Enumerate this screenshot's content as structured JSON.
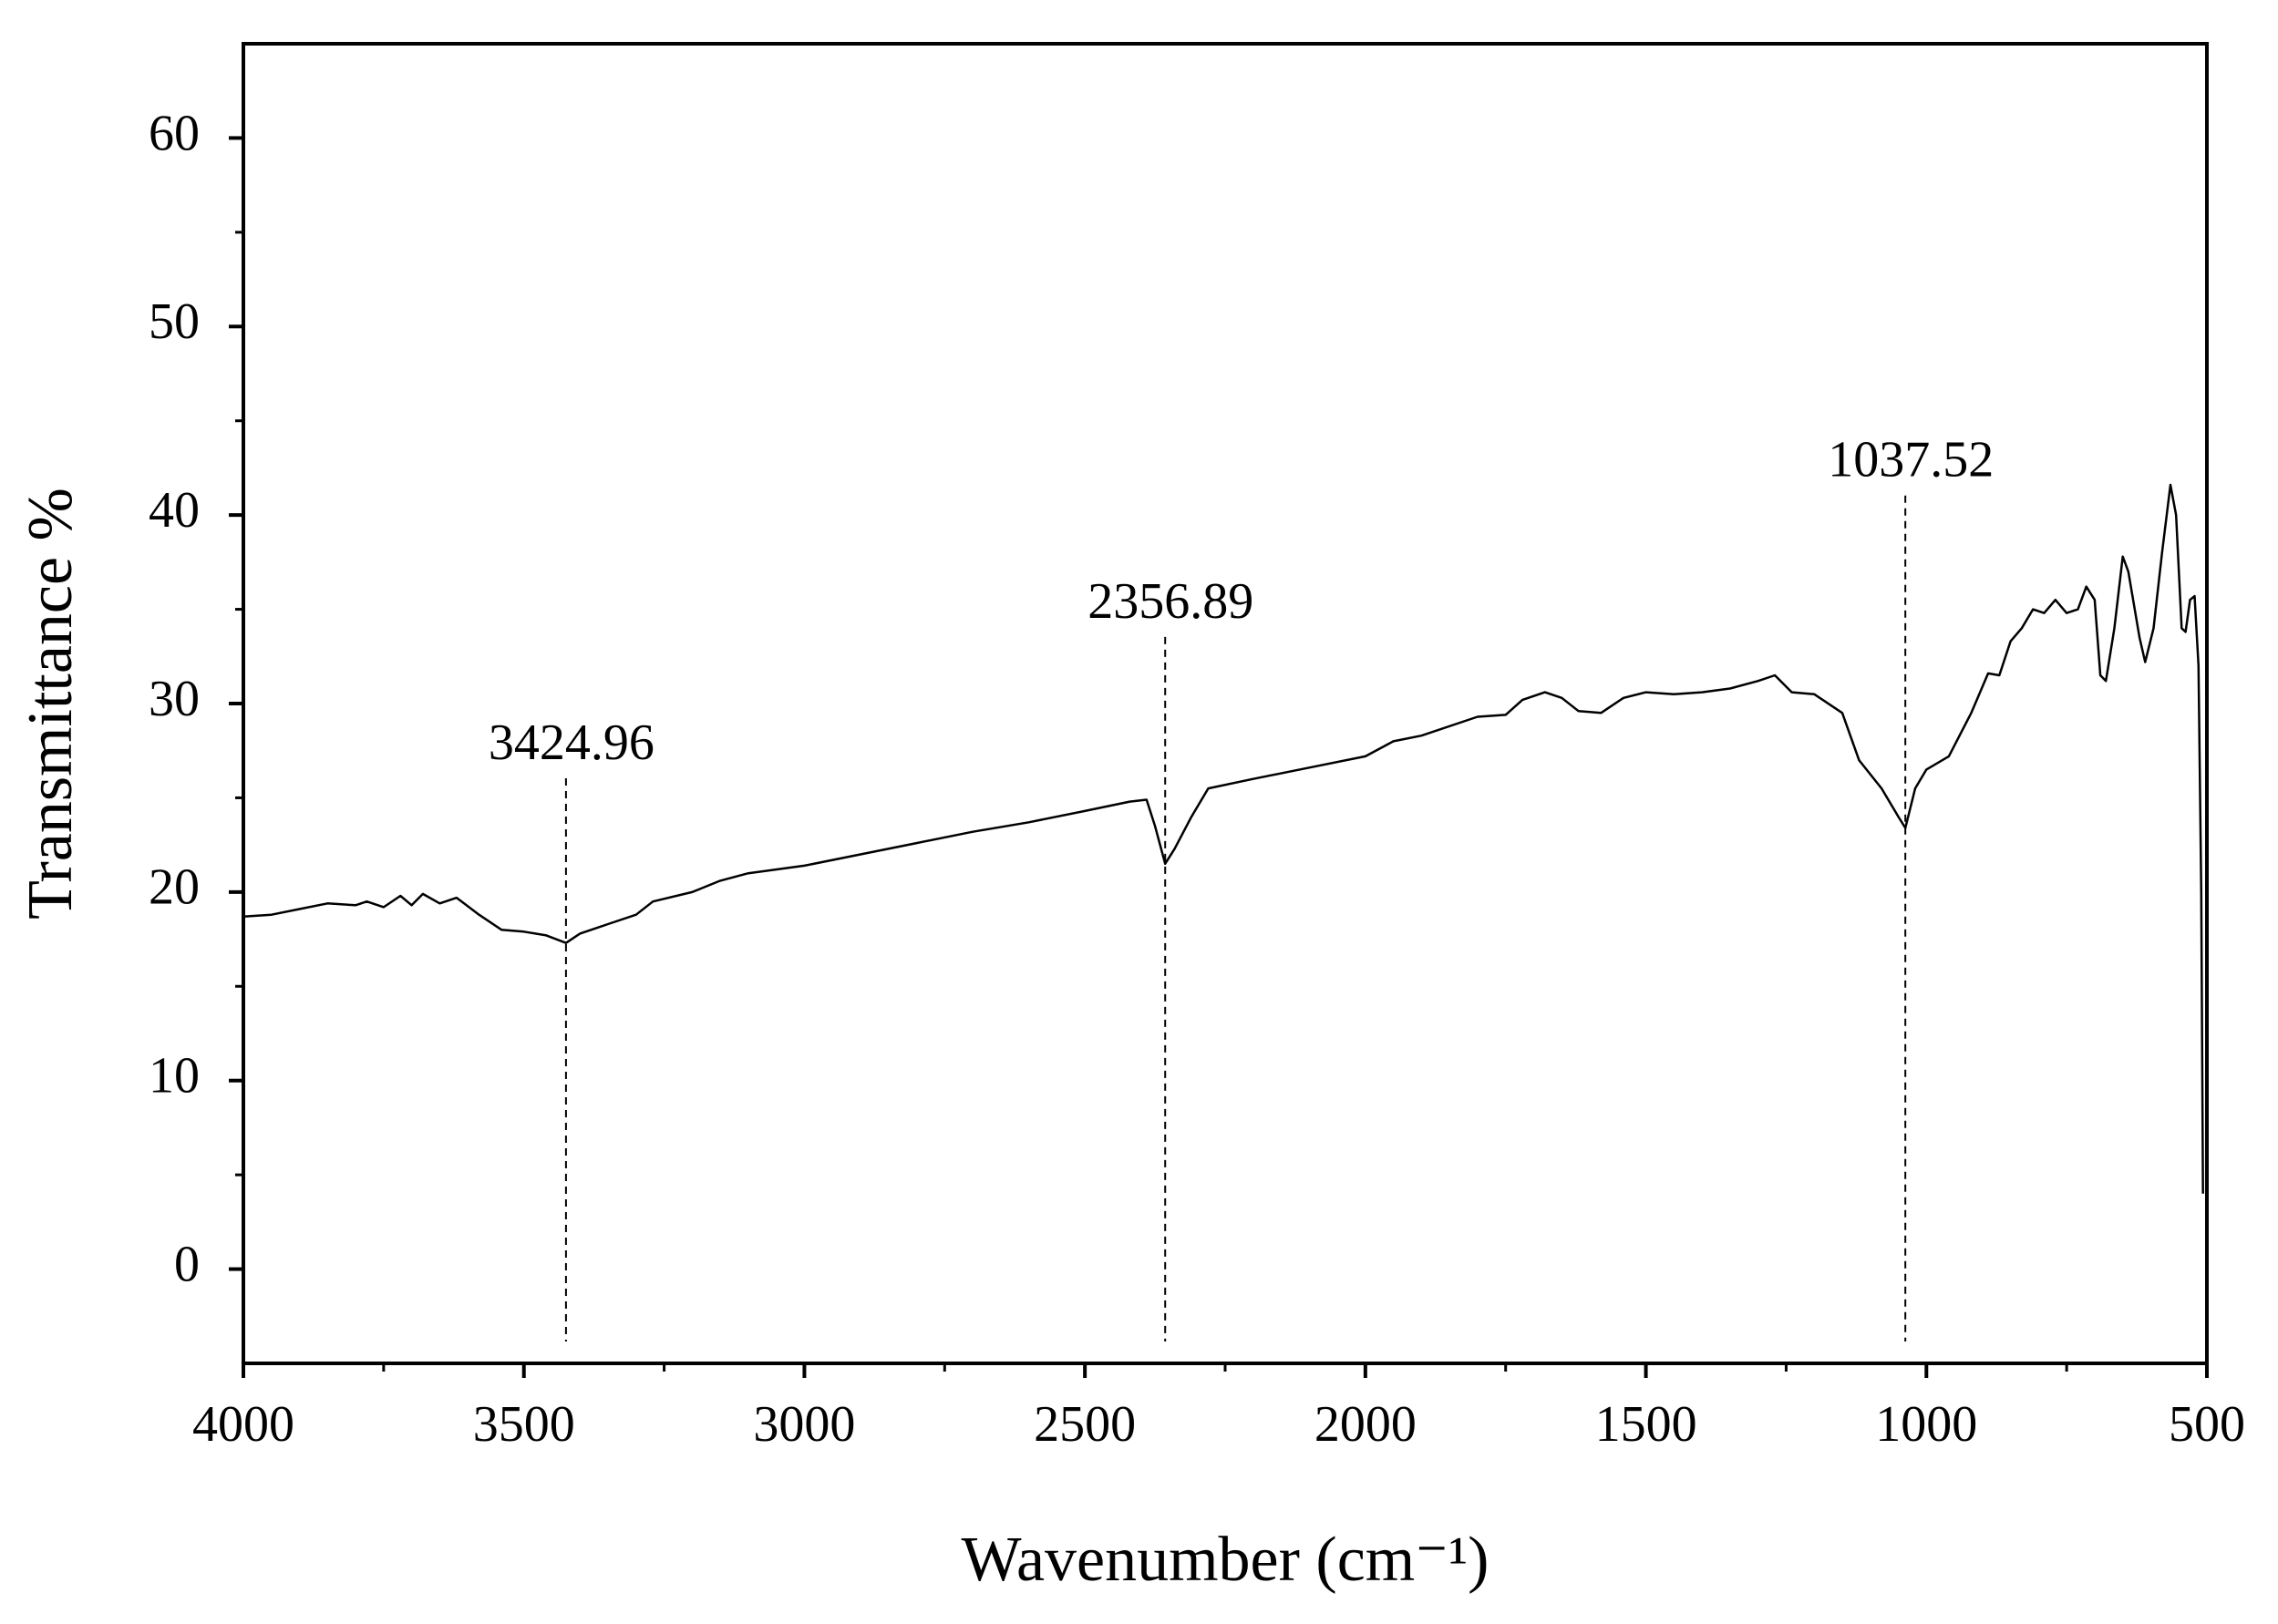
{
  "chart_data": {
    "type": "line",
    "xlabel": "Wavenumber (cm⁻¹)",
    "ylabel": "Transmittance %",
    "xlim": [
      4000,
      500
    ],
    "ylim": [
      -5,
      65
    ],
    "xticks": [
      4000,
      3500,
      3000,
      2500,
      2000,
      1500,
      1000,
      500
    ],
    "yticks": [
      0,
      10,
      20,
      30,
      40,
      50,
      60
    ],
    "series": [
      {
        "color": "#000000",
        "x": [
          4000,
          3950,
          3900,
          3850,
          3800,
          3780,
          3750,
          3720,
          3700,
          3680,
          3650,
          3620,
          3580,
          3540,
          3500,
          3460,
          3424.96,
          3400,
          3350,
          3300,
          3270,
          3200,
          3150,
          3100,
          3000,
          2900,
          2800,
          2700,
          2600,
          2500,
          2420,
          2390,
          2375,
          2356.89,
          2340,
          2310,
          2280,
          2200,
          2100,
          2000,
          1950,
          1900,
          1800,
          1750,
          1720,
          1680,
          1650,
          1620,
          1580,
          1540,
          1500,
          1450,
          1400,
          1350,
          1300,
          1270,
          1240,
          1200,
          1150,
          1120,
          1080,
          1050,
          1037.52,
          1020,
          1000,
          960,
          920,
          890,
          870,
          850,
          830,
          810,
          790,
          770,
          750,
          730,
          715,
          700,
          690,
          680,
          665,
          650,
          640,
          620,
          610,
          595,
          580,
          565,
          555,
          545,
          538,
          530,
          522,
          515,
          510,
          507
        ],
        "values": [
          18.7,
          18.8,
          19.1,
          19.4,
          19.3,
          19.5,
          19.2,
          19.8,
          19.3,
          19.9,
          19.4,
          19.7,
          18.8,
          18.0,
          17.9,
          17.7,
          17.3,
          17.8,
          18.3,
          18.8,
          19.5,
          20.0,
          20.6,
          21.0,
          21.4,
          22.0,
          22.6,
          23.2,
          23.7,
          24.3,
          24.8,
          24.9,
          23.5,
          21.5,
          22.3,
          24.0,
          25.5,
          26.0,
          26.6,
          27.2,
          28.0,
          28.3,
          29.3,
          29.4,
          30.2,
          30.6,
          30.3,
          29.6,
          29.5,
          30.3,
          30.6,
          30.5,
          30.6,
          30.8,
          31.2,
          31.5,
          30.6,
          30.5,
          29.5,
          27.0,
          25.5,
          24.0,
          23.4,
          25.5,
          26.5,
          27.2,
          29.5,
          31.6,
          31.5,
          33.3,
          34.0,
          35.0,
          34.8,
          35.5,
          34.8,
          35.0,
          36.2,
          35.5,
          31.5,
          31.2,
          34.0,
          37.8,
          37.0,
          33.5,
          32.2,
          34.0,
          38.0,
          41.6,
          40.0,
          34.0,
          33.8,
          35.5,
          35.7,
          32.0,
          20.0,
          4.0
        ]
      }
    ],
    "annotations": [
      {
        "x": 3424.96,
        "y": 27
      },
      {
        "x": 2356.89,
        "y": 34.5
      },
      {
        "x": 1037.52,
        "y": 42
      }
    ]
  }
}
